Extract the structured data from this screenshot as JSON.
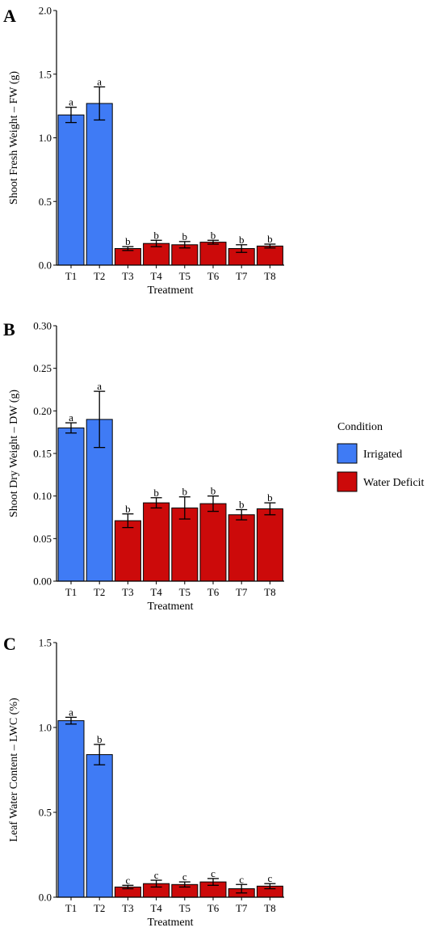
{
  "legend": {
    "title": "Condition",
    "items": [
      {
        "label": "Irrigated",
        "color": "#3F7BF5"
      },
      {
        "label": "Water Deficit",
        "color": "#CC0A0A"
      }
    ]
  },
  "chart_data": [
    {
      "type": "bar",
      "panel": "A",
      "xlabel": "Treatment",
      "ylabel": "Shoot Fresh Weight – FW (g)",
      "ylim": [
        0,
        2.0
      ],
      "yticks": [
        "0.0",
        "0.5",
        "1.0",
        "1.5",
        "2.0"
      ],
      "yticks_values": [
        0,
        0.5,
        1.0,
        1.5,
        2.0
      ],
      "categories": [
        "T1",
        "T2",
        "T3",
        "T4",
        "T5",
        "T6",
        "T7",
        "T8"
      ],
      "condition": [
        "Irrigated",
        "Irrigated",
        "Water Deficit",
        "Water Deficit",
        "Water Deficit",
        "Water Deficit",
        "Water Deficit",
        "Water Deficit"
      ],
      "values": [
        1.18,
        1.27,
        0.13,
        0.17,
        0.16,
        0.18,
        0.13,
        0.15
      ],
      "error": [
        0.06,
        0.13,
        0.015,
        0.025,
        0.025,
        0.015,
        0.03,
        0.015
      ],
      "letters": [
        "a",
        "a",
        "b",
        "b",
        "b",
        "b",
        "b",
        "b"
      ]
    },
    {
      "type": "bar",
      "panel": "B",
      "xlabel": "Treatment",
      "ylabel": "Shoot Dry Weight – DW (g)",
      "ylim": [
        0,
        0.3
      ],
      "yticks": [
        "0.00",
        "0.05",
        "0.10",
        "0.15",
        "0.20",
        "0.25",
        "0.30"
      ],
      "yticks_values": [
        0,
        0.05,
        0.1,
        0.15,
        0.2,
        0.25,
        0.3
      ],
      "categories": [
        "T1",
        "T2",
        "T3",
        "T4",
        "T5",
        "T6",
        "T7",
        "T8"
      ],
      "condition": [
        "Irrigated",
        "Irrigated",
        "Water Deficit",
        "Water Deficit",
        "Water Deficit",
        "Water Deficit",
        "Water Deficit",
        "Water Deficit"
      ],
      "values": [
        0.18,
        0.19,
        0.071,
        0.092,
        0.086,
        0.091,
        0.078,
        0.085
      ],
      "error": [
        0.006,
        0.033,
        0.008,
        0.006,
        0.013,
        0.009,
        0.006,
        0.007
      ],
      "letters": [
        "a",
        "a",
        "b",
        "b",
        "b",
        "b",
        "b",
        "b"
      ]
    },
    {
      "type": "bar",
      "panel": "C",
      "xlabel": "Treatment",
      "ylabel": "Leaf Water Content – LWC (%)",
      "ylim": [
        0,
        1.5
      ],
      "yticks": [
        "0.0",
        "0.5",
        "1.0",
        "1.5"
      ],
      "yticks_values": [
        0,
        0.5,
        1.0,
        1.5
      ],
      "categories": [
        "T1",
        "T2",
        "T3",
        "T4",
        "T5",
        "T6",
        "T7",
        "T8"
      ],
      "condition": [
        "Irrigated",
        "Irrigated",
        "Water Deficit",
        "Water Deficit",
        "Water Deficit",
        "Water Deficit",
        "Water Deficit",
        "Water Deficit"
      ],
      "values": [
        1.04,
        0.84,
        0.06,
        0.08,
        0.075,
        0.09,
        0.05,
        0.065
      ],
      "error": [
        0.02,
        0.06,
        0.01,
        0.02,
        0.015,
        0.02,
        0.025,
        0.015
      ],
      "letters": [
        "a",
        "b",
        "c",
        "c",
        "c",
        "c",
        "c",
        "c"
      ]
    }
  ]
}
